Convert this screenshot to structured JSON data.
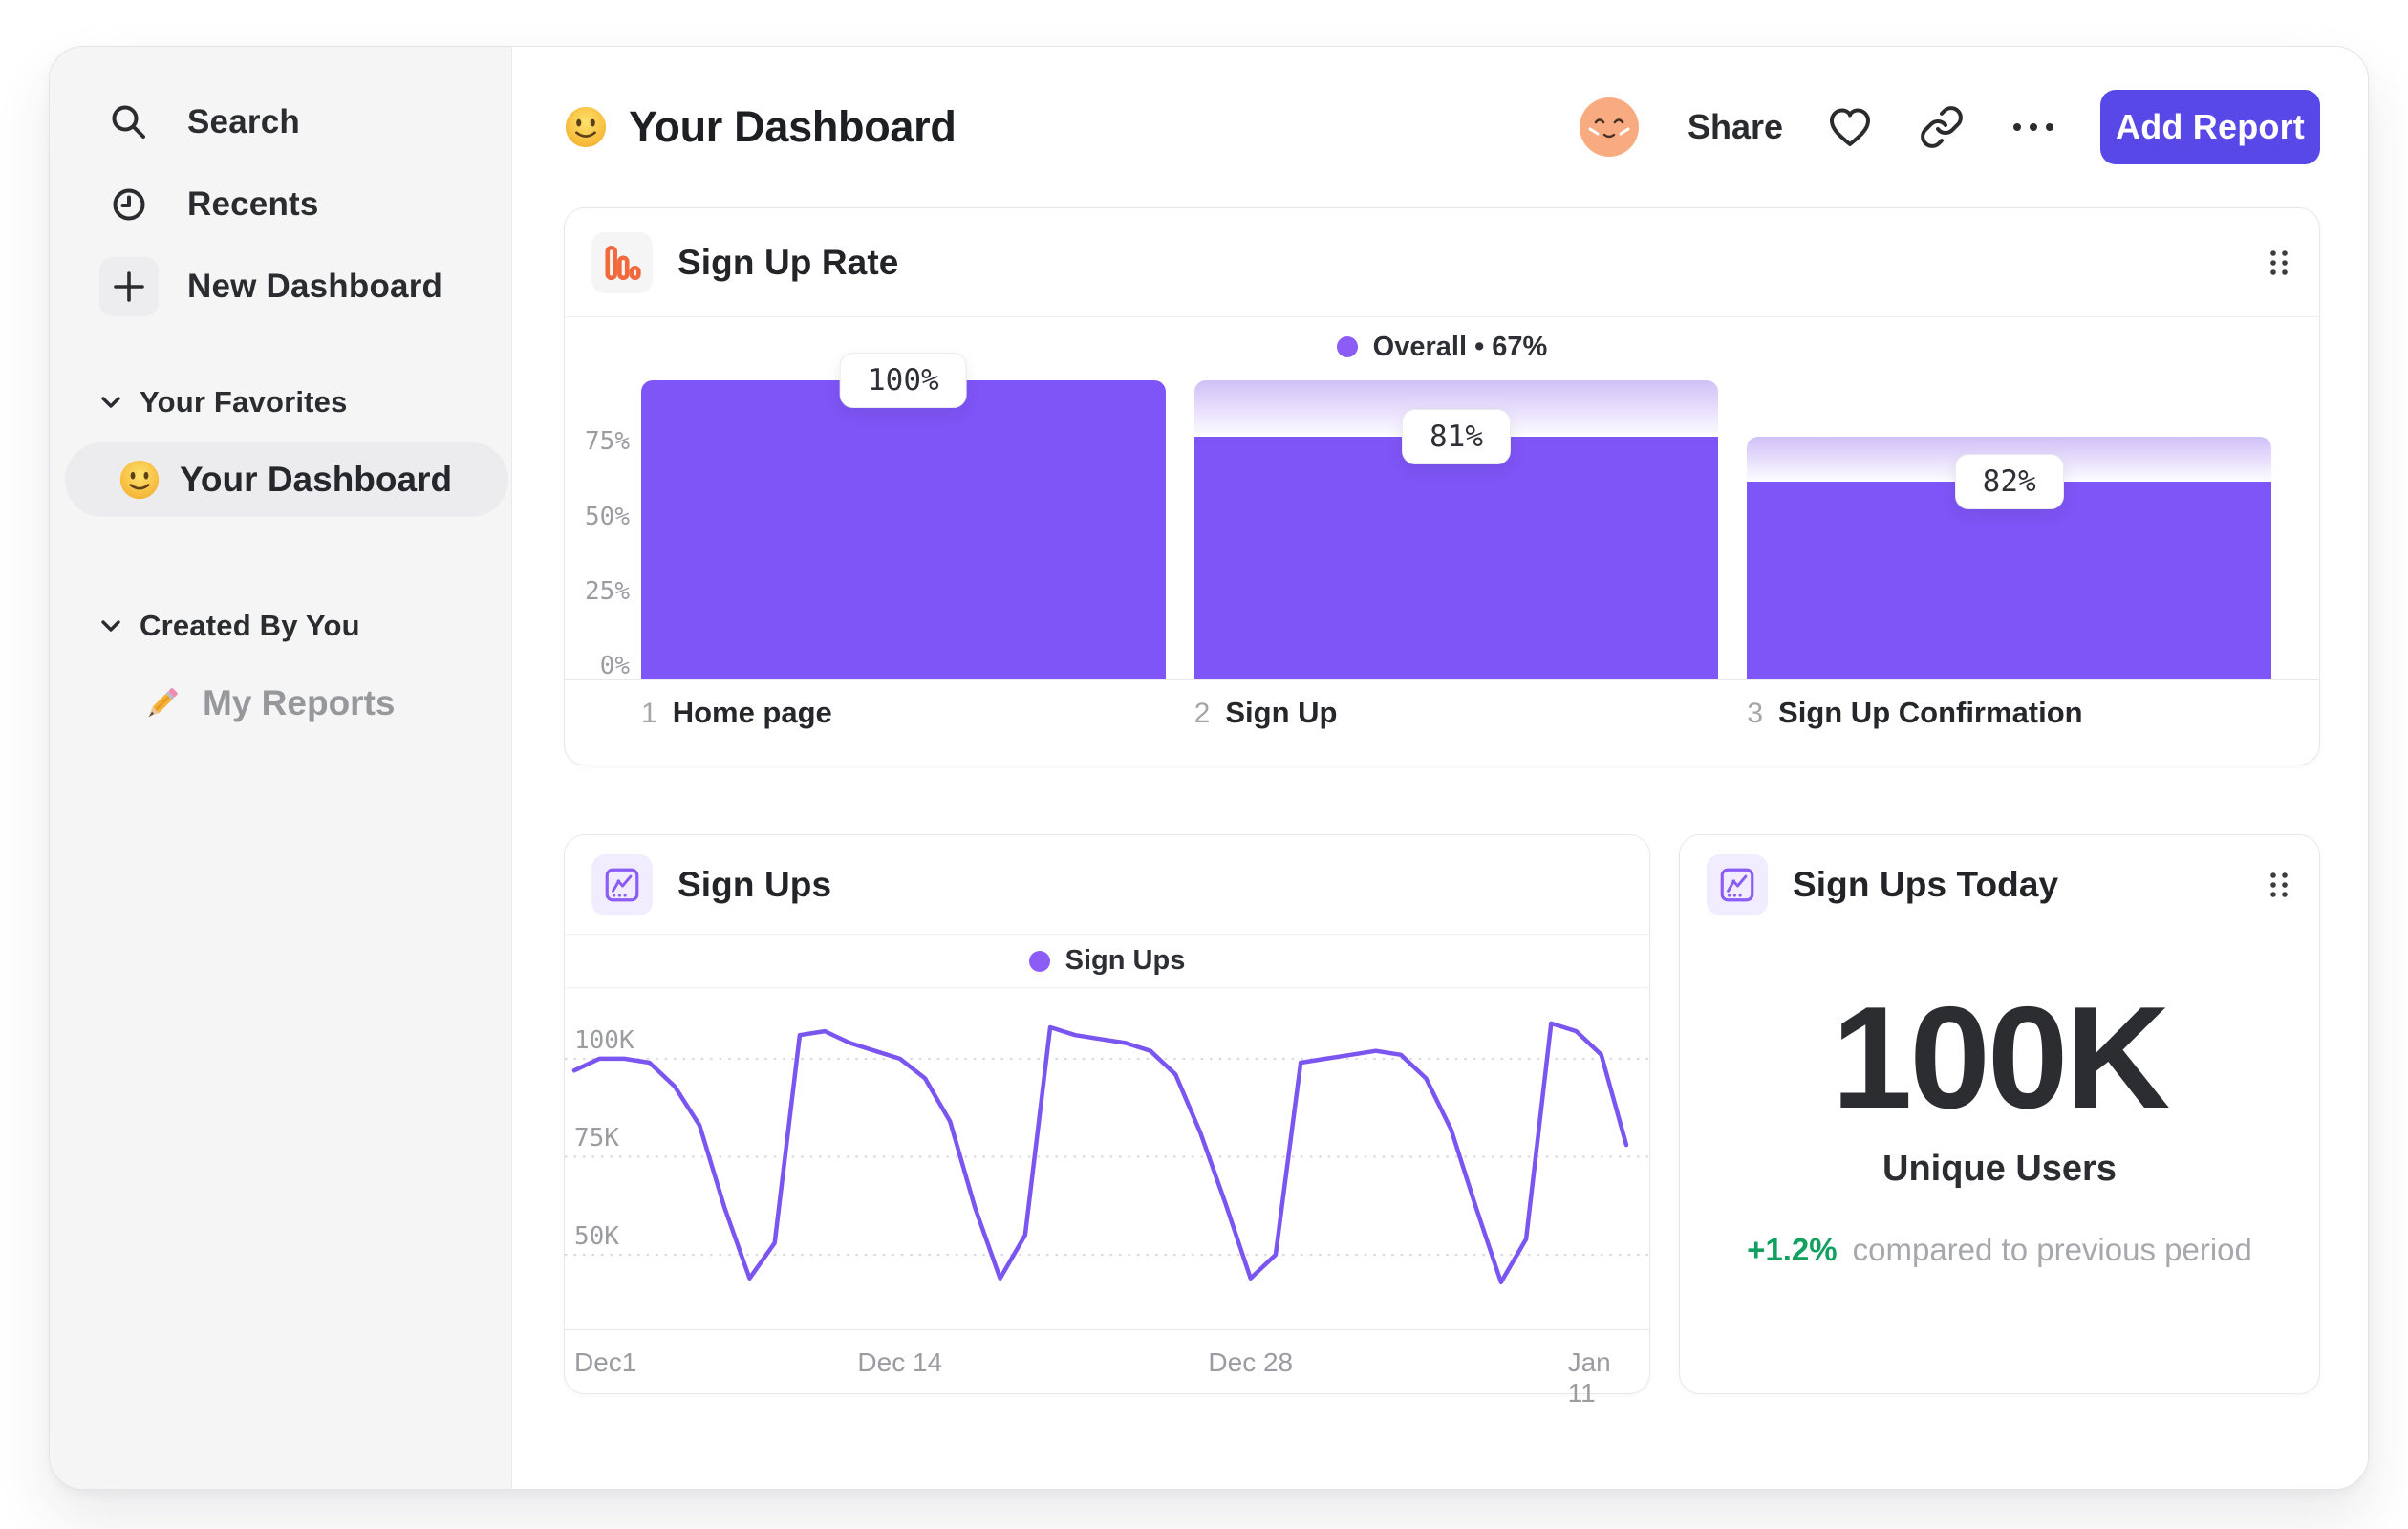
{
  "sidebar": {
    "nav": [
      {
        "icon": "search-icon",
        "label": "Search"
      },
      {
        "icon": "clock-icon",
        "label": "Recents"
      },
      {
        "icon": "plus-icon",
        "label": "New Dashboard"
      }
    ],
    "sections": [
      {
        "title": "Your Favorites",
        "items": [
          {
            "emoji": "slightly-smiling-face",
            "label": "Your Dashboard",
            "active": true
          }
        ]
      },
      {
        "title": "Created By You",
        "items": [
          {
            "emoji": "pencil",
            "label": "My Reports",
            "active": false
          }
        ]
      }
    ]
  },
  "header": {
    "title": "Your Dashboard",
    "share_label": "Share",
    "add_report_label": "Add Report"
  },
  "cards": {
    "funnel": {
      "title": "Sign Up Rate",
      "legend_display": "Overall  •  67%"
    },
    "line": {
      "title": "Sign Ups",
      "legend_display": "Sign Ups"
    },
    "stat": {
      "title": "Sign Ups Today",
      "value": "100K",
      "label": "Unique Users",
      "delta": "+1.2%",
      "delta_note": "compared to previous period"
    }
  },
  "colors": {
    "bar_purple": "#7e55f6",
    "line_purple": "#7a55f0",
    "legend_dot": "#8b5cf6",
    "button_indigo": "#5848e8",
    "funnel_icon_orange": "#f2693d",
    "chart_icon_purple": "#8b5cf6",
    "delta_green": "#12a05f"
  },
  "chart_data": [
    {
      "type": "bar",
      "title": "Sign Up Rate",
      "legend": [
        {
          "label": "Overall",
          "value": "67%",
          "color": "#8b5cf6"
        }
      ],
      "categories": [
        {
          "index": "1",
          "label": "Home page",
          "step_display": "100%",
          "step_conversion_pct": 100,
          "overall_pct": 100
        },
        {
          "index": "2",
          "label": "Sign Up",
          "step_display": "81%",
          "step_conversion_pct": 81,
          "overall_pct": 81
        },
        {
          "index": "3",
          "label": "Sign Up Confirmation",
          "step_display": "82%",
          "step_conversion_pct": 82,
          "overall_pct": 66
        }
      ],
      "yticks": [
        {
          "label": "75%",
          "pct": 75
        },
        {
          "label": "50%",
          "pct": 50
        },
        {
          "label": "25%",
          "pct": 25
        },
        {
          "label": "0%",
          "pct": 0
        }
      ],
      "ylim": [
        0,
        100
      ],
      "grid": false,
      "legend_position": "top-center"
    },
    {
      "type": "line",
      "title": "Sign Ups",
      "legend": [
        {
          "label": "Sign Ups",
          "color": "#8b5cf6"
        }
      ],
      "xlabel": "",
      "ylabel": "",
      "unit": "K",
      "ylim": [
        31,
        118
      ],
      "yticks": [
        {
          "label": "100K",
          "value": 100
        },
        {
          "label": "75K",
          "value": 75
        },
        {
          "label": "50K",
          "value": 50
        }
      ],
      "xticks": [
        {
          "label": "Dec1",
          "day": 1
        },
        {
          "label": "Dec 14",
          "day": 14
        },
        {
          "label": "Dec 28",
          "day": 28
        },
        {
          "label": "Jan 11",
          "day": 42
        }
      ],
      "grid": "dotted-horizontal",
      "values_unit_note": "thousands of sign ups per day, Dec 1 - Jan 12",
      "values": [
        97,
        100,
        100,
        99,
        93,
        83,
        62,
        44,
        53,
        106,
        107,
        104,
        102,
        100,
        95,
        84,
        62,
        44,
        55,
        108,
        106,
        105,
        104,
        102,
        96,
        81,
        63,
        44,
        50,
        99,
        100,
        101,
        102,
        101,
        95,
        82,
        62,
        43,
        54,
        109,
        107,
        101,
        78
      ]
    }
  ]
}
